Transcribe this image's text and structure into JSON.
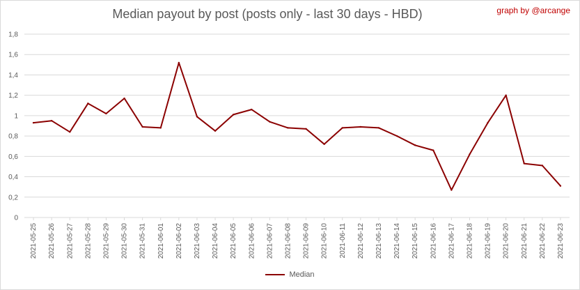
{
  "chart_data": {
    "type": "line",
    "title": "Median payout by post (posts only - last 30 days - HBD)",
    "credit": "graph by @arcange",
    "x": [
      "2021-05-25",
      "2021-05-26",
      "2021-05-27",
      "2021-05-28",
      "2021-05-29",
      "2021-05-30",
      "2021-05-31",
      "2021-06-01",
      "2021-06-02",
      "2021-06-03",
      "2021-06-04",
      "2021-06-05",
      "2021-06-06",
      "2021-06-07",
      "2021-06-08",
      "2021-06-09",
      "2021-06-10",
      "2021-06-11",
      "2021-06-12",
      "2021-06-13",
      "2021-06-14",
      "2021-06-15",
      "2021-06-16",
      "2021-06-17",
      "2021-06-18",
      "2021-06-19",
      "2021-06-20",
      "2021-06-21",
      "2021-06-22",
      "2021-06-23"
    ],
    "series": [
      {
        "name": "Median",
        "color": "#8b0000",
        "values": [
          0.93,
          0.95,
          0.84,
          1.12,
          1.02,
          1.17,
          0.89,
          0.88,
          1.52,
          0.99,
          0.85,
          1.01,
          1.06,
          0.94,
          0.88,
          0.87,
          0.72,
          0.88,
          0.89,
          0.88,
          0.8,
          0.71,
          0.66,
          0.27,
          0.62,
          0.93,
          1.2,
          0.53,
          0.51,
          0.31
        ]
      }
    ],
    "ylim": [
      0,
      1.8
    ],
    "yticks": [
      "0",
      "0,2",
      "0,4",
      "0,6",
      "0,8",
      "1",
      "1,2",
      "1,4",
      "1,6",
      "1,8"
    ],
    "grid": true,
    "legend": "bottom"
  }
}
